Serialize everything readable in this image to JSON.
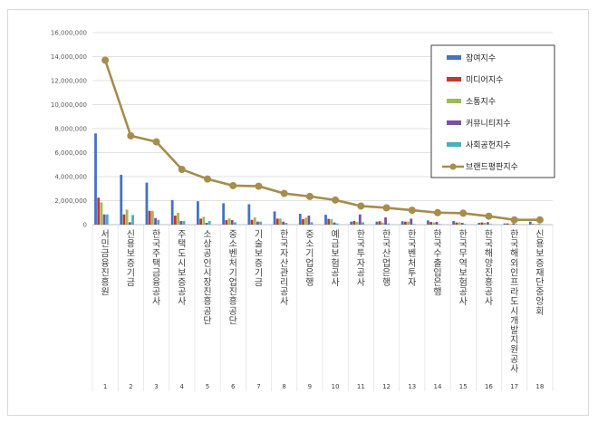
{
  "chart_data": {
    "type": "bar",
    "ylim": [
      0,
      16000000
    ],
    "y_ticks": [
      "0",
      "2,000,000",
      "4,000,000",
      "6,000,000",
      "8,000,000",
      "10,000,000",
      "12,000,000",
      "14,000,000",
      "16,000,000"
    ],
    "grid": true,
    "legend_position": "top-right",
    "categories": [
      "서민금융진흥원",
      "신용보증기금",
      "한국주택금융공사",
      "주택도시보증공사",
      "소상공인시장진흥공단",
      "중소벤처기업진흥공단",
      "기술보증기금",
      "한국자산관리공사",
      "중소기업은행",
      "예금보험공사",
      "한국투자공사",
      "한국산업은행",
      "한국벤처투자",
      "한국수출입은행",
      "한국무역보험공사",
      "한국해양진흥공사",
      "한국해외인프라도시개발지원공사",
      "신용보증재단중앙회"
    ],
    "numbers": [
      "1",
      "2",
      "3",
      "4",
      "5",
      "6",
      "7",
      "8",
      "9",
      "10",
      "11",
      "12",
      "13",
      "14",
      "15",
      "16",
      "17",
      "18"
    ],
    "series": [
      {
        "name": "참여지수",
        "color": "#4472c4",
        "kind": "bar",
        "values": [
          7600000,
          4150000,
          3500000,
          2050000,
          1950000,
          1780000,
          1700000,
          1100000,
          900000,
          820000,
          250000,
          250000,
          280000,
          350000,
          300000,
          150000,
          100000,
          250000
        ]
      },
      {
        "name": "미디어지수",
        "color": "#c0392b",
        "kind": "bar",
        "values": [
          2250000,
          850000,
          1150000,
          750000,
          500000,
          380000,
          400000,
          500000,
          450000,
          480000,
          300000,
          280000,
          250000,
          220000,
          180000,
          180000,
          100000,
          50000
        ]
      },
      {
        "name": "소통지수",
        "color": "#9bbb59",
        "kind": "bar",
        "values": [
          1850000,
          1250000,
          1150000,
          980000,
          650000,
          520000,
          600000,
          500000,
          580000,
          450000,
          220000,
          180000,
          250000,
          180000,
          200000,
          150000,
          50000,
          50000
        ]
      },
      {
        "name": "커뮤니티지수",
        "color": "#7b4fa3",
        "kind": "bar",
        "values": [
          850000,
          200000,
          550000,
          300000,
          150000,
          380000,
          250000,
          250000,
          750000,
          180000,
          850000,
          600000,
          500000,
          230000,
          150000,
          200000,
          100000,
          50000
        ]
      },
      {
        "name": "사회공헌지수",
        "color": "#4bacc6",
        "kind": "bar",
        "values": [
          850000,
          800000,
          400000,
          300000,
          300000,
          200000,
          250000,
          150000,
          200000,
          100000,
          200000,
          100000,
          50000,
          50000,
          50000,
          50000,
          50000,
          20000
        ]
      },
      {
        "name": "브랜드평판지수",
        "color": "#a58d4c",
        "kind": "line",
        "values": [
          13700000,
          7400000,
          6900000,
          4600000,
          3800000,
          3250000,
          3200000,
          2600000,
          2350000,
          2050000,
          1550000,
          1400000,
          1200000,
          1000000,
          950000,
          700000,
          400000,
          400000
        ]
      }
    ]
  }
}
